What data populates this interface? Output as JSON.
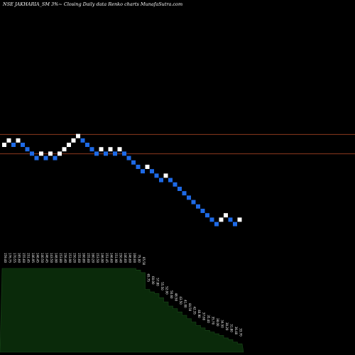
{
  "header": {
    "title": "NSE JAKHARIA_SM 3%~  Closing Daily data  Renko  charts MunafaSutra.com"
  },
  "colors": {
    "background": "#000000",
    "up_brick": "#ffffff",
    "down_brick": "#1e6ae6",
    "level_line": "#8b3a1e",
    "volume_fill": "#0a2a0a",
    "volume_stroke": "#1a4a1a"
  },
  "chart_data": {
    "type": "renko",
    "title": "NSE JAKHARIA_SM 3%~  Closing Daily data  Renko  charts MunafaSutra.com",
    "bricks": [
      {
        "dir": "up",
        "level": 0
      },
      {
        "dir": "up",
        "level": 1
      },
      {
        "dir": "down",
        "level": 0
      },
      {
        "dir": "up",
        "level": 1
      },
      {
        "dir": "down",
        "level": 0
      },
      {
        "dir": "down",
        "level": -1
      },
      {
        "dir": "down",
        "level": -2
      },
      {
        "dir": "down",
        "level": -3
      },
      {
        "dir": "up",
        "level": -2
      },
      {
        "dir": "down",
        "level": -3
      },
      {
        "dir": "up",
        "level": -2
      },
      {
        "dir": "down",
        "level": -3
      },
      {
        "dir": "up",
        "level": -2
      },
      {
        "dir": "up",
        "level": -1
      },
      {
        "dir": "up",
        "level": 0
      },
      {
        "dir": "up",
        "level": 1
      },
      {
        "dir": "up",
        "level": 2
      },
      {
        "dir": "down",
        "level": 1
      },
      {
        "dir": "down",
        "level": 0
      },
      {
        "dir": "down",
        "level": -1
      },
      {
        "dir": "down",
        "level": -2
      },
      {
        "dir": "up",
        "level": -1
      },
      {
        "dir": "down",
        "level": -2
      },
      {
        "dir": "up",
        "level": -1
      },
      {
        "dir": "down",
        "level": -2
      },
      {
        "dir": "up",
        "level": -1
      },
      {
        "dir": "down",
        "level": -2
      },
      {
        "dir": "down",
        "level": -3
      },
      {
        "dir": "down",
        "level": -4
      },
      {
        "dir": "down",
        "level": -5
      },
      {
        "dir": "down",
        "level": -6
      },
      {
        "dir": "up",
        "level": -5
      },
      {
        "dir": "down",
        "level": -6
      },
      {
        "dir": "down",
        "level": -7
      },
      {
        "dir": "down",
        "level": -8
      },
      {
        "dir": "up",
        "level": -7
      },
      {
        "dir": "down",
        "level": -8
      },
      {
        "dir": "down",
        "level": -9
      },
      {
        "dir": "down",
        "level": -10
      },
      {
        "dir": "down",
        "level": -11
      },
      {
        "dir": "down",
        "level": -12
      },
      {
        "dir": "down",
        "level": -13
      },
      {
        "dir": "down",
        "level": -14
      },
      {
        "dir": "down",
        "level": -15
      },
      {
        "dir": "down",
        "level": -16
      },
      {
        "dir": "down",
        "level": -17
      },
      {
        "dir": "down",
        "level": -18
      },
      {
        "dir": "up",
        "level": -17
      },
      {
        "dir": "up",
        "level": -16
      },
      {
        "dir": "down",
        "level": -17
      },
      {
        "dir": "down",
        "level": -18
      },
      {
        "dir": "up",
        "level": -17
      }
    ],
    "price_labels": [
      "159.40",
      "176.75",
      "170.55",
      "165.60",
      "155.60",
      "151.45",
      "146.95",
      "146.45",
      "140.50",
      "146.45",
      "143.50",
      "148.90",
      "153.80",
      "156.40",
      "153.90",
      "150.20",
      "155.60",
      "160.80",
      "155.60",
      "160.20",
      "153.50",
      "146.90",
      "151.45",
      "146.60",
      "151.90",
      "150.40",
      "146.60",
      "146.60",
      "108.00",
      "75.00",
      "65.50",
      "65.75",
      "60.00",
      "57.80",
      "55.50",
      "52.00",
      "50.60",
      "48.50",
      "43.50",
      "41.00",
      "44.50",
      "42.35",
      "40.90",
      "37.60",
      "35.40",
      "35.70",
      "38.00",
      "34.50",
      "30.20",
      "31.80",
      "36.40",
      "33.70"
    ],
    "volume": [
      1.0,
      1.0,
      1.0,
      1.0,
      1.0,
      1.0,
      1.0,
      1.0,
      1.0,
      1.0,
      1.0,
      1.0,
      1.0,
      1.0,
      1.0,
      1.0,
      1.0,
      1.0,
      1.0,
      1.0,
      1.0,
      1.0,
      1.0,
      1.0,
      1.0,
      1.0,
      1.0,
      1.0,
      1.0,
      0.98,
      0.95,
      0.75,
      0.72,
      0.7,
      0.65,
      0.6,
      0.55,
      0.52,
      0.48,
      0.44,
      0.4,
      0.36,
      0.32,
      0.29,
      0.26,
      0.24,
      0.22,
      0.2,
      0.17,
      0.15,
      0.12,
      0.1
    ],
    "horizontal_levels": [
      1,
      -1
    ]
  }
}
